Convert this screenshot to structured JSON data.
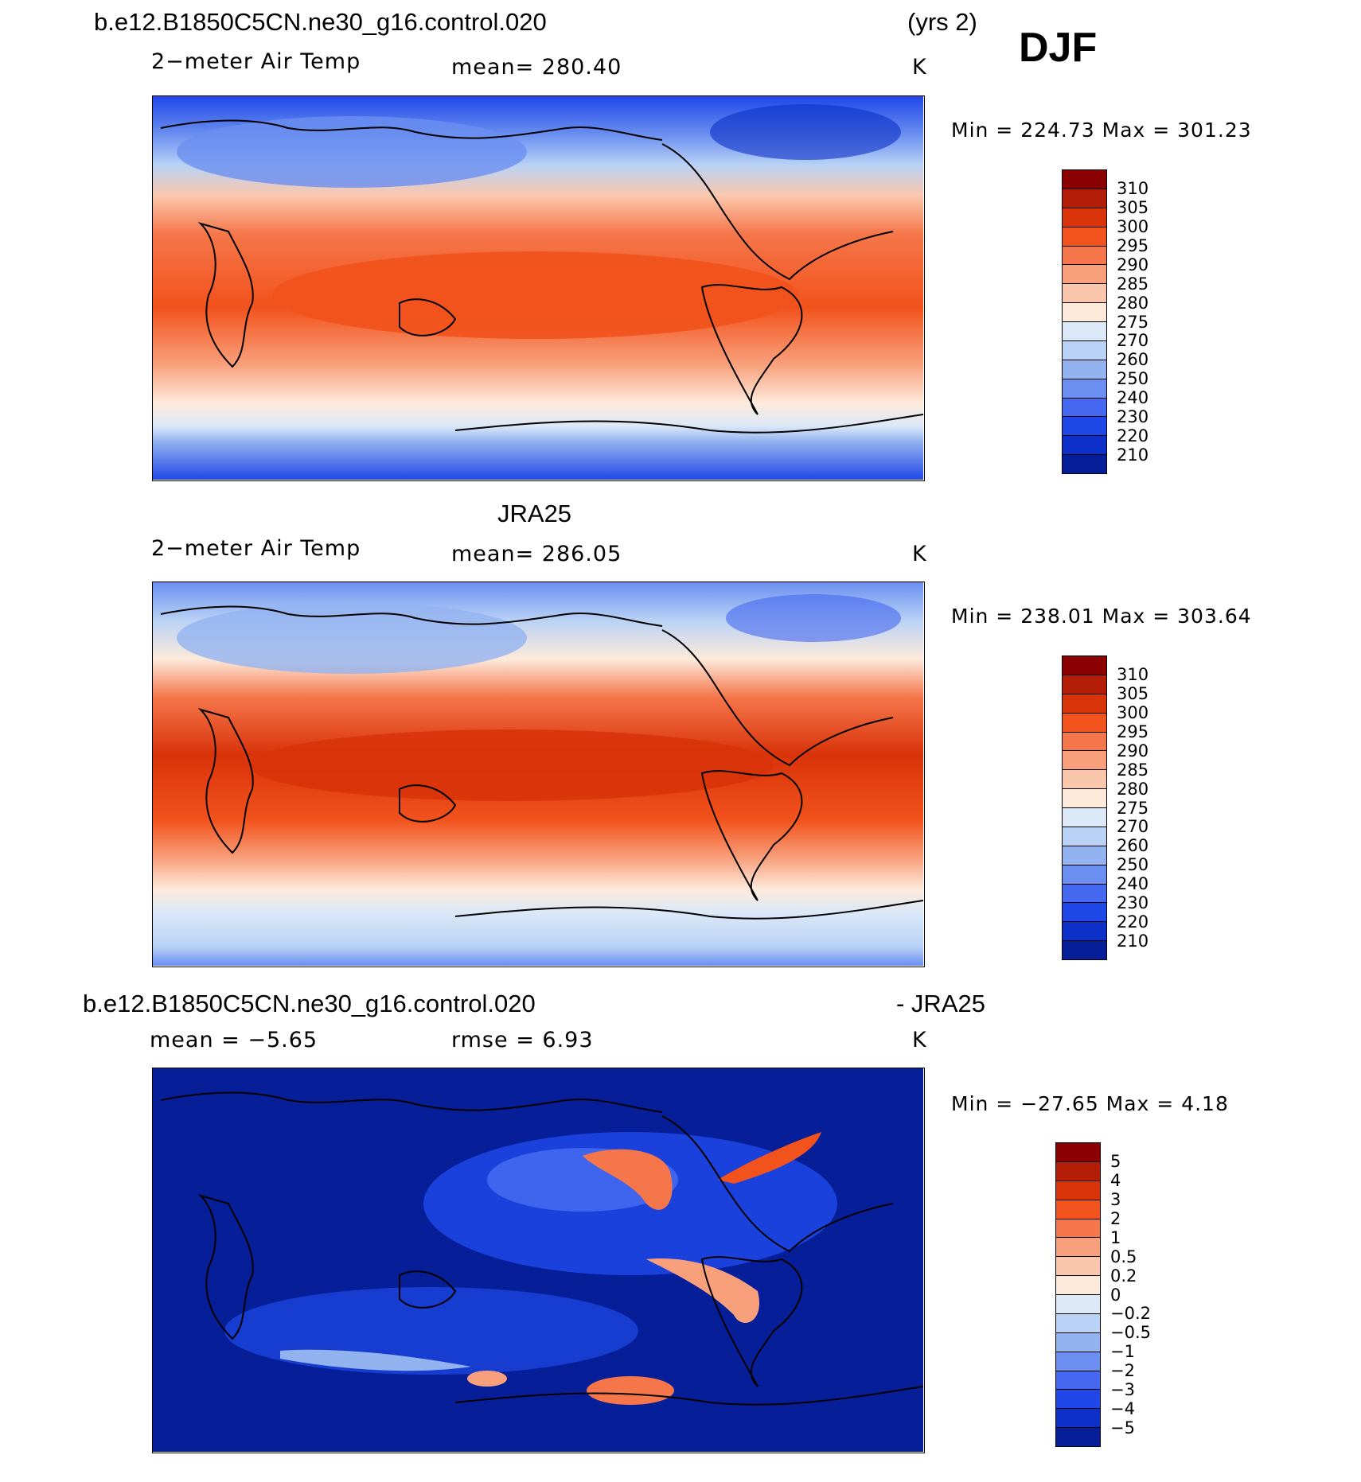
{
  "panel1": {
    "case_title": "b.e12.B1850C5CN.ne30_g16.control.020",
    "years": "(yrs 2)",
    "season": "DJF",
    "variable": "2−meter Air Temp",
    "mean_text": "mean=  280.40",
    "units": "K",
    "minmax": "Min  =  224.73  Max  =  301.23",
    "colorbar_labels": [
      "310",
      "305",
      "300",
      "295",
      "290",
      "285",
      "280",
      "275",
      "270",
      "260",
      "250",
      "240",
      "230",
      "220",
      "210"
    ],
    "colorbar_colors": [
      "#8b0000",
      "#b41e08",
      "#d9330a",
      "#f2521c",
      "#f5764a",
      "#f8a07c",
      "#fbc7ac",
      "#fdeadb",
      "#dce9f8",
      "#b9d2f5",
      "#93b3f0",
      "#6a8ff0",
      "#4468f0",
      "#2048e8",
      "#0c30c8",
      "#061e98"
    ]
  },
  "panel2": {
    "title": "JRA25",
    "variable": "2−meter Air Temp",
    "mean_text": "mean=  286.05",
    "units": "K",
    "minmax": "Min  =  238.01  Max  =  303.64",
    "colorbar_labels": [
      "310",
      "305",
      "300",
      "295",
      "290",
      "285",
      "280",
      "275",
      "270",
      "260",
      "250",
      "240",
      "230",
      "220",
      "210"
    ],
    "colorbar_colors": [
      "#8b0000",
      "#b41e08",
      "#d9330a",
      "#f2521c",
      "#f5764a",
      "#f8a07c",
      "#fbc7ac",
      "#fdeadb",
      "#dce9f8",
      "#b9d2f5",
      "#93b3f0",
      "#6a8ff0",
      "#4468f0",
      "#2048e8",
      "#0c30c8",
      "#061e98"
    ]
  },
  "panel3": {
    "case_title": "b.e12.B1850C5CN.ne30_g16.control.020",
    "minus_title": "- JRA25",
    "mean_text": "mean =    −5.65",
    "rmse_text": "rmse =     6.93",
    "units": "K",
    "minmax": "Min  =  −27.65  Max  =     4.18",
    "colorbar_labels": [
      "5",
      "4",
      "3",
      "2",
      "1",
      "0.5",
      "0.2",
      "0",
      "−0.2",
      "−0.5",
      "−1",
      "−2",
      "−3",
      "−4",
      "−5"
    ],
    "colorbar_colors": [
      "#8b0000",
      "#b41e08",
      "#d9330a",
      "#f2521c",
      "#f5764a",
      "#f8a07c",
      "#fbc7ac",
      "#fdeadb",
      "#dce9f8",
      "#b9d2f5",
      "#93b3f0",
      "#6a8ff0",
      "#4468f0",
      "#2048e8",
      "#0c30c8",
      "#061e98"
    ]
  }
}
